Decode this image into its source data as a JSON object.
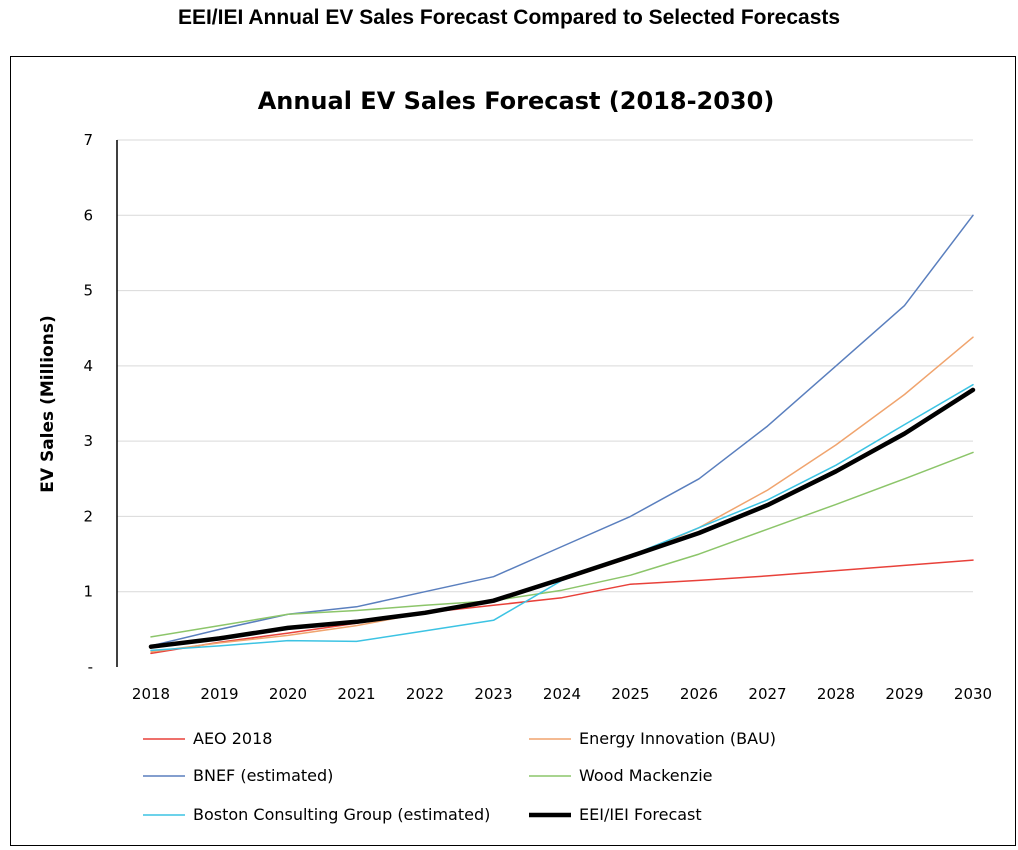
{
  "header": {
    "title": "EEI/IEI Annual EV Sales Forecast Compared to Selected Forecasts"
  },
  "chart_data": {
    "type": "line",
    "title": "Annual EV Sales Forecast (2018-2030)",
    "xlabel": "",
    "ylabel": "EV Sales (Millions)",
    "x": [
      "2018",
      "2019",
      "2020",
      "2021",
      "2022",
      "2023",
      "2024",
      "2025",
      "2026",
      "2027",
      "2028",
      "2029",
      "2030"
    ],
    "y_ticks": [
      "-",
      "1",
      "2",
      "3",
      "4",
      "5",
      "6",
      "7"
    ],
    "ylim": [
      0,
      7
    ],
    "grid": true,
    "legend_position": "bottom",
    "series": [
      {
        "name": "AEO 2018",
        "color": "#e8413a",
        "width": 1.5,
        "values": [
          0.18,
          0.33,
          0.45,
          0.58,
          0.72,
          0.82,
          0.92,
          1.1,
          1.15,
          1.21,
          1.28,
          1.35,
          1.42
        ]
      },
      {
        "name": "Energy Innovation (BAU)",
        "color": "#f0a46e",
        "width": 1.5,
        "values": [
          0.2,
          0.32,
          0.42,
          0.55,
          0.72,
          0.88,
          1.15,
          1.45,
          1.85,
          2.35,
          2.95,
          3.62,
          4.38
        ]
      },
      {
        "name": "BNEF (estimated)",
        "color": "#5a7fbe",
        "width": 1.5,
        "values": [
          0.28,
          0.5,
          0.7,
          0.8,
          1.0,
          1.2,
          1.6,
          2.0,
          2.5,
          3.2,
          4.0,
          4.8,
          6.0
        ]
      },
      {
        "name": "Wood Mackenzie",
        "color": "#8cc56a",
        "width": 1.5,
        "values": [
          0.4,
          0.55,
          0.7,
          0.75,
          0.82,
          0.88,
          1.02,
          1.22,
          1.5,
          1.83,
          2.16,
          2.5,
          2.85
        ]
      },
      {
        "name": "Boston Consulting Group (estimated)",
        "color": "#3cc3e3",
        "width": 1.5,
        "values": [
          0.22,
          0.28,
          0.35,
          0.34,
          0.48,
          0.62,
          1.15,
          1.48,
          1.85,
          2.22,
          2.68,
          3.22,
          3.75
        ]
      },
      {
        "name": "EEI/IEI Forecast",
        "color": "#000000",
        "width": 4.5,
        "values": [
          0.27,
          0.38,
          0.52,
          0.6,
          0.72,
          0.88,
          1.17,
          1.47,
          1.78,
          2.15,
          2.6,
          3.1,
          3.68
        ]
      }
    ]
  }
}
